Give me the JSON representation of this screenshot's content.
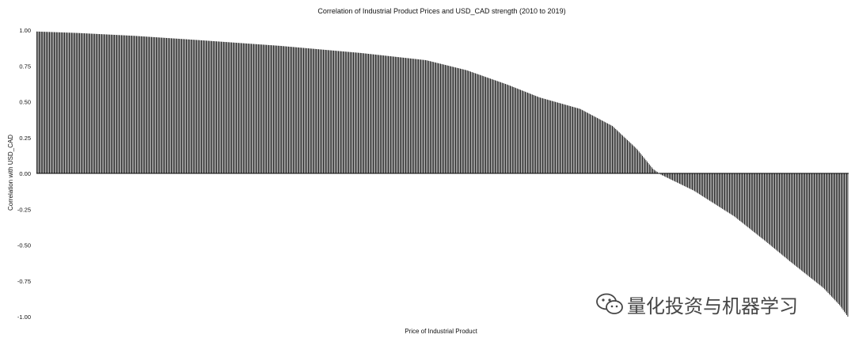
{
  "chart_data": {
    "type": "bar",
    "title": "Correlation of Industrial Product Prices and USD_CAD strength (2010 to 2019)",
    "xlabel": "Price of Industrial Product",
    "ylabel": "Correlation with USD_CAD",
    "ylim": [
      -1.0,
      1.0
    ],
    "yticks": [
      1.0,
      0.75,
      0.5,
      0.25,
      0.0,
      -0.25,
      -0.5,
      -0.75,
      -1.0
    ],
    "ytick_labels": [
      "1.00",
      "0.75",
      "0.50",
      "0.25",
      "0.00",
      "-0.25",
      "-0.50",
      "-0.75",
      "-1.00"
    ],
    "grid": false,
    "legend": "none",
    "sorted": "descending",
    "bar_count": 700,
    "profile": [
      [
        0.0,
        0.99
      ],
      [
        0.05,
        0.98
      ],
      [
        0.12,
        0.96
      ],
      [
        0.2,
        0.93
      ],
      [
        0.3,
        0.89
      ],
      [
        0.4,
        0.84
      ],
      [
        0.48,
        0.79
      ],
      [
        0.53,
        0.72
      ],
      [
        0.58,
        0.62
      ],
      [
        0.62,
        0.53
      ],
      [
        0.67,
        0.45
      ],
      [
        0.71,
        0.33
      ],
      [
        0.74,
        0.17
      ],
      [
        0.76,
        0.03
      ],
      [
        0.77,
        -0.01
      ],
      [
        0.81,
        -0.12
      ],
      [
        0.86,
        -0.3
      ],
      [
        0.9,
        -0.48
      ],
      [
        0.93,
        -0.62
      ],
      [
        0.97,
        -0.8
      ],
      [
        0.99,
        -0.92
      ],
      [
        1.0,
        -1.0
      ]
    ],
    "bar_color": "#000000"
  },
  "watermark": {
    "text": "量化投资与机器学习",
    "icon": "wechat-icon"
  }
}
